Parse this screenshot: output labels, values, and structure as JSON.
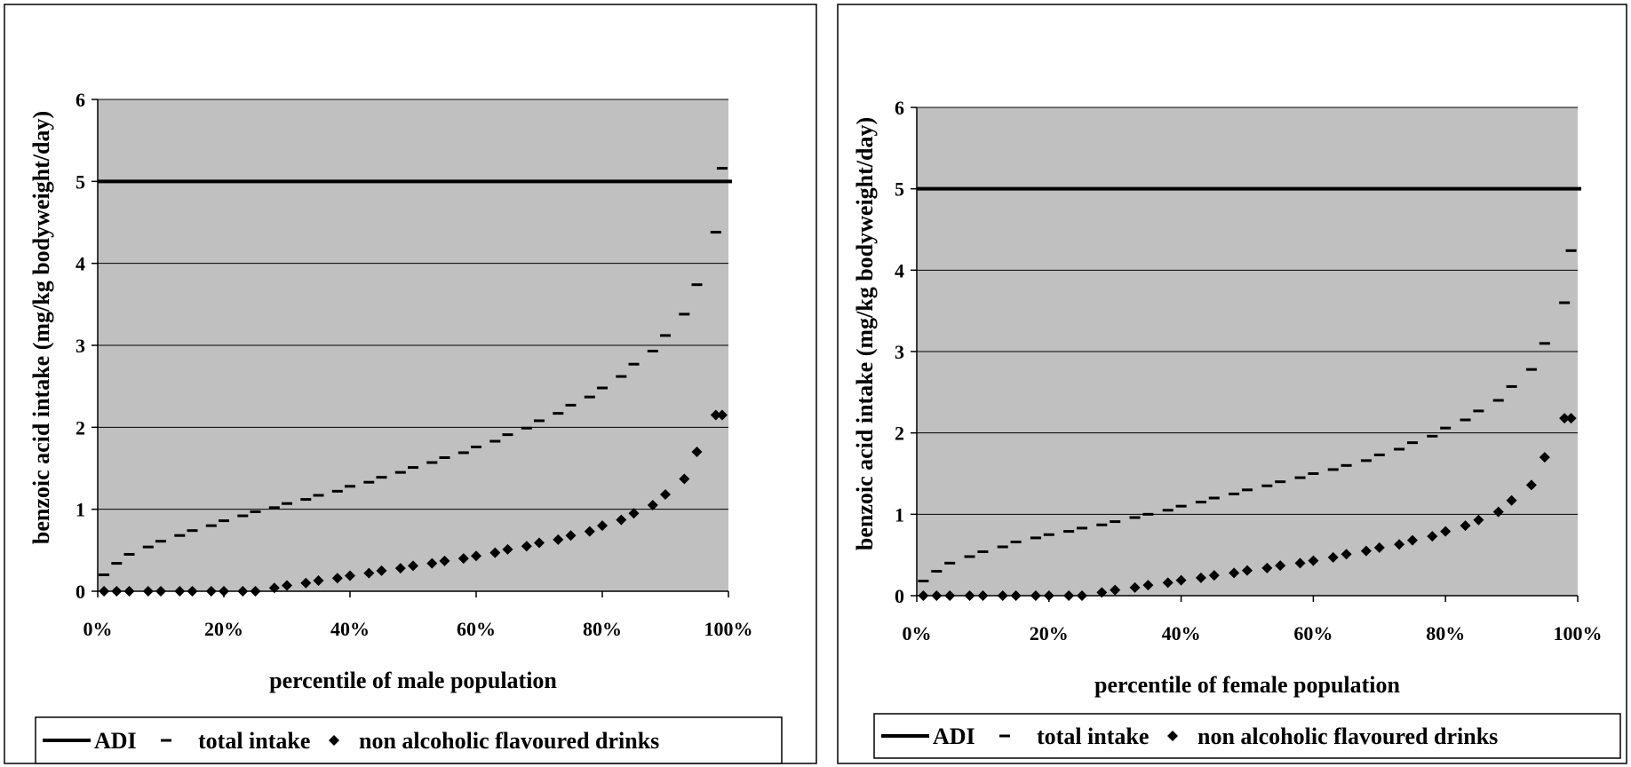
{
  "colors": {
    "plot_background": "#c0c0c0",
    "gridline": "#000000",
    "adi_line": "#000000",
    "markers": "#000000"
  },
  "chart_data": [
    {
      "type": "scatter",
      "xlabel": "percentile of male population",
      "ylabel": "benzoic acid intake (mg/kg bodyweight/day)",
      "xlim": [
        0,
        100
      ],
      "ylim": [
        0,
        6
      ],
      "x_ticks": [
        "0%",
        "20%",
        "40%",
        "60%",
        "80%",
        "100%"
      ],
      "y_ticks": [
        "0",
        "1",
        "2",
        "3",
        "4",
        "5",
        "6"
      ],
      "grid": "horizontal",
      "legend_position": "bottom",
      "x": [
        1,
        3,
        5,
        8,
        10,
        13,
        15,
        18,
        20,
        23,
        25,
        28,
        30,
        33,
        35,
        38,
        40,
        43,
        45,
        48,
        50,
        53,
        55,
        58,
        60,
        63,
        65,
        68,
        70,
        73,
        75,
        78,
        80,
        83,
        85,
        88,
        90,
        93,
        95,
        98,
        99
      ],
      "series": [
        {
          "name": "ADI",
          "style": "line",
          "constant": 5
        },
        {
          "name": "total intake",
          "style": "dash",
          "values": [
            0.2,
            0.34,
            0.45,
            0.54,
            0.61,
            0.68,
            0.74,
            0.8,
            0.86,
            0.92,
            0.97,
            1.02,
            1.07,
            1.12,
            1.17,
            1.22,
            1.28,
            1.33,
            1.39,
            1.45,
            1.51,
            1.57,
            1.63,
            1.69,
            1.76,
            1.83,
            1.91,
            1.99,
            2.08,
            2.17,
            2.27,
            2.37,
            2.48,
            2.62,
            2.77,
            2.93,
            3.12,
            3.38,
            3.74,
            4.38,
            5.16
          ]
        },
        {
          "name": "non alcoholic flavoured drinks",
          "style": "diamond",
          "values": [
            0,
            0,
            0,
            0,
            0,
            0,
            0,
            0,
            0,
            0,
            0,
            0.04,
            0.07,
            0.1,
            0.13,
            0.16,
            0.19,
            0.22,
            0.25,
            0.28,
            0.31,
            0.34,
            0.37,
            0.4,
            0.43,
            0.47,
            0.51,
            0.55,
            0.59,
            0.63,
            0.68,
            0.73,
            0.8,
            0.87,
            0.95,
            1.05,
            1.18,
            1.37,
            1.7,
            2.15,
            2.15
          ]
        }
      ]
    },
    {
      "type": "scatter",
      "xlabel": "percentile of female population",
      "ylabel": "benzoic acid intake (mg/kg bodyweight/day)",
      "xlim": [
        0,
        100
      ],
      "ylim": [
        0,
        6
      ],
      "x_ticks": [
        "0%",
        "20%",
        "40%",
        "60%",
        "80%",
        "100%"
      ],
      "y_ticks": [
        "0",
        "1",
        "2",
        "3",
        "4",
        "5",
        "6"
      ],
      "grid": "horizontal",
      "legend_position": "bottom",
      "x": [
        1,
        3,
        5,
        8,
        10,
        13,
        15,
        18,
        20,
        23,
        25,
        28,
        30,
        33,
        35,
        38,
        40,
        43,
        45,
        48,
        50,
        53,
        55,
        58,
        60,
        63,
        65,
        68,
        70,
        73,
        75,
        78,
        80,
        83,
        85,
        88,
        90,
        93,
        95,
        98,
        99
      ],
      "series": [
        {
          "name": "ADI",
          "style": "line",
          "constant": 5
        },
        {
          "name": "total intake",
          "style": "dash",
          "values": [
            0.18,
            0.3,
            0.4,
            0.48,
            0.54,
            0.6,
            0.66,
            0.71,
            0.75,
            0.79,
            0.83,
            0.87,
            0.91,
            0.96,
            1.0,
            1.05,
            1.1,
            1.15,
            1.2,
            1.25,
            1.3,
            1.35,
            1.4,
            1.45,
            1.5,
            1.55,
            1.6,
            1.66,
            1.73,
            1.8,
            1.88,
            1.96,
            2.06,
            2.16,
            2.27,
            2.4,
            2.57,
            2.78,
            3.1,
            3.6,
            4.24
          ]
        },
        {
          "name": "non alcoholic flavoured drinks",
          "style": "diamond",
          "values": [
            0,
            0,
            0,
            0,
            0,
            0,
            0,
            0,
            0,
            0,
            0,
            0.04,
            0.07,
            0.1,
            0.13,
            0.16,
            0.19,
            0.22,
            0.25,
            0.28,
            0.31,
            0.34,
            0.37,
            0.4,
            0.43,
            0.47,
            0.51,
            0.55,
            0.59,
            0.63,
            0.68,
            0.73,
            0.79,
            0.86,
            0.93,
            1.03,
            1.17,
            1.36,
            1.7,
            2.18,
            2.18
          ]
        }
      ]
    }
  ]
}
